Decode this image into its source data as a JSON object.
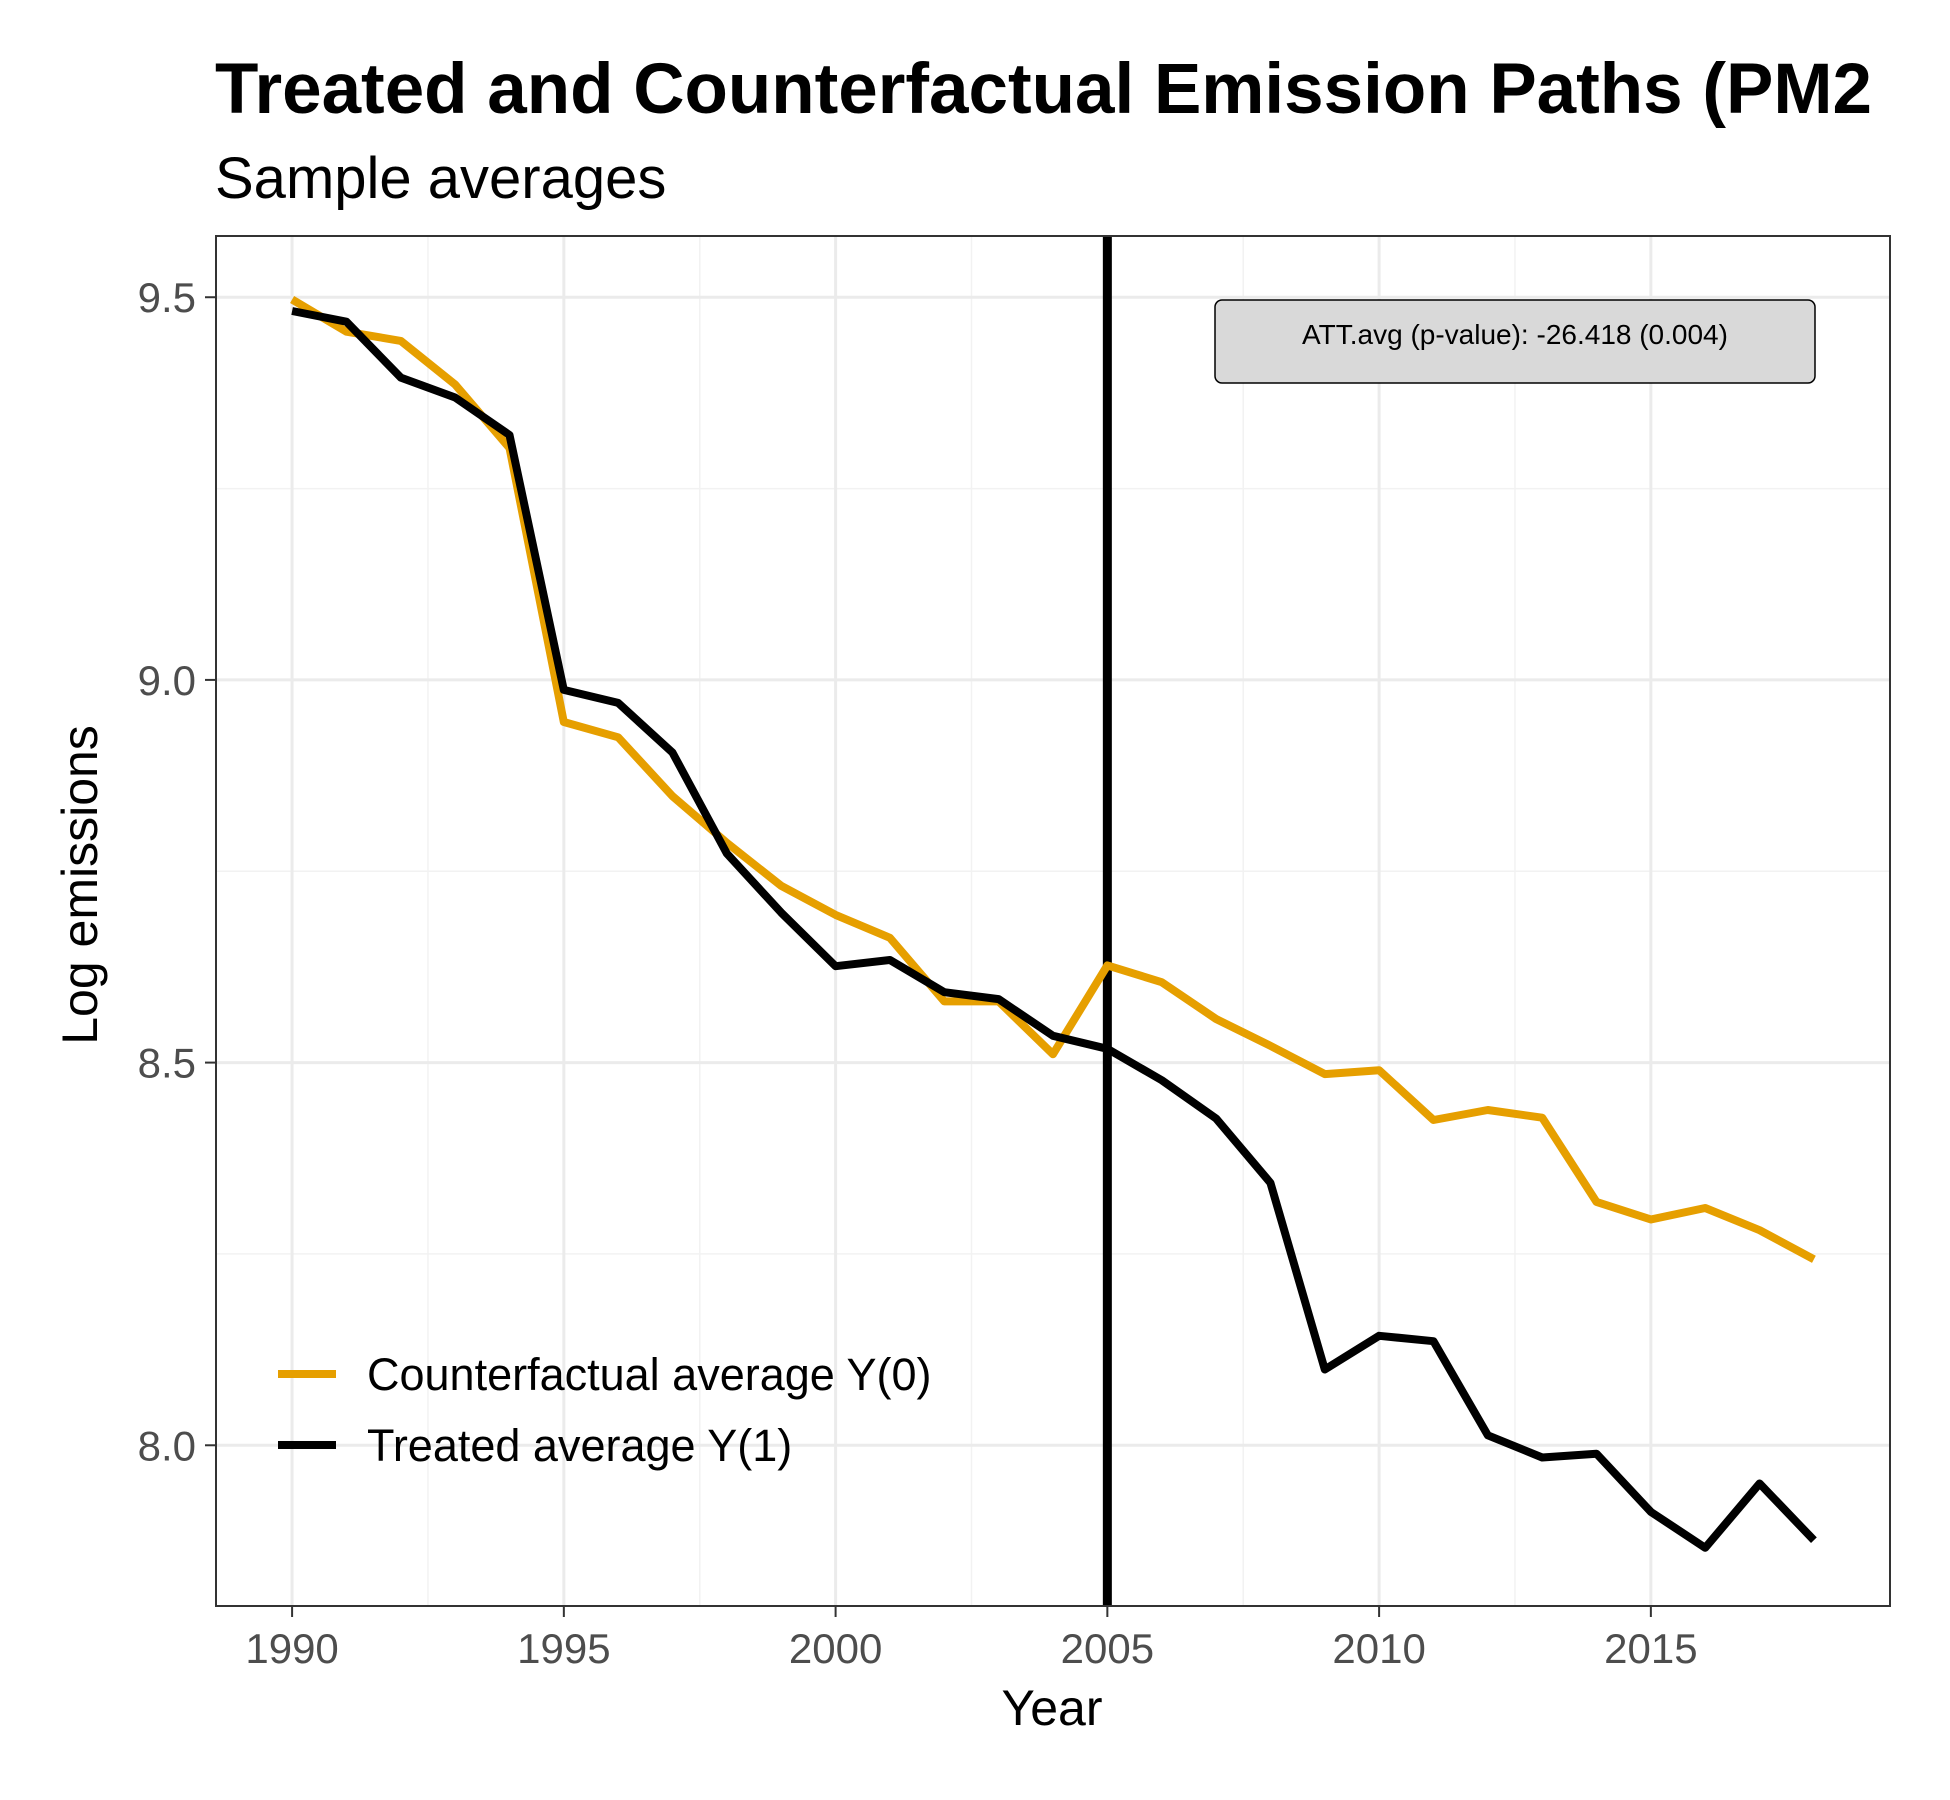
{
  "chart_data": {
    "type": "line",
    "title": "Treated and Counterfactual Emission Paths (PM2",
    "subtitle": "Sample averages",
    "xlabel": "Year",
    "ylabel": "Log emissions",
    "xlim": [
      1988.6,
      2019.4
    ],
    "ylim": [
      7.79,
      9.58
    ],
    "x_ticks": [
      1990,
      1995,
      2000,
      2005,
      2010,
      2015
    ],
    "x_tick_labels": [
      "1990",
      "1995",
      "2000",
      "2005",
      "2010",
      "2015"
    ],
    "y_ticks": [
      8.0,
      8.5,
      9.0,
      9.5
    ],
    "y_tick_labels": [
      "8.0",
      "8.5",
      "9.0",
      "9.5"
    ],
    "grid": true,
    "treatment_year": 2005,
    "annotation": "ATT.avg (p-value): -26.418 (0.004)",
    "legend_position": "bottom-left",
    "x": [
      1990,
      1991,
      1992,
      1993,
      1994,
      1995,
      1996,
      1997,
      1998,
      1999,
      2000,
      2001,
      2002,
      2003,
      2004,
      2005,
      2006,
      2007,
      2008,
      2009,
      2010,
      2011,
      2012,
      2013,
      2014,
      2015,
      2016,
      2017,
      2018
    ],
    "series": [
      {
        "name": "Counterfactual average Y(0)",
        "color": "#E69F00",
        "values": [
          9.497,
          9.455,
          9.443,
          9.386,
          9.303,
          8.945,
          8.925,
          8.848,
          8.787,
          8.731,
          8.693,
          8.663,
          8.58,
          8.58,
          8.511,
          8.627,
          8.605,
          8.557,
          8.522,
          8.485,
          8.49,
          8.425,
          8.438,
          8.428,
          8.318,
          8.295,
          8.31,
          8.281,
          8.243
        ]
      },
      {
        "name": "Treated average Y(1)",
        "color": "#000000",
        "values": [
          9.482,
          9.468,
          9.395,
          9.369,
          9.32,
          8.987,
          8.97,
          8.905,
          8.773,
          8.696,
          8.626,
          8.634,
          8.592,
          8.583,
          8.535,
          8.518,
          8.477,
          8.427,
          8.343,
          8.099,
          8.143,
          8.136,
          8.013,
          7.984,
          7.989,
          7.913,
          7.866,
          7.95,
          7.876
        ]
      }
    ]
  }
}
